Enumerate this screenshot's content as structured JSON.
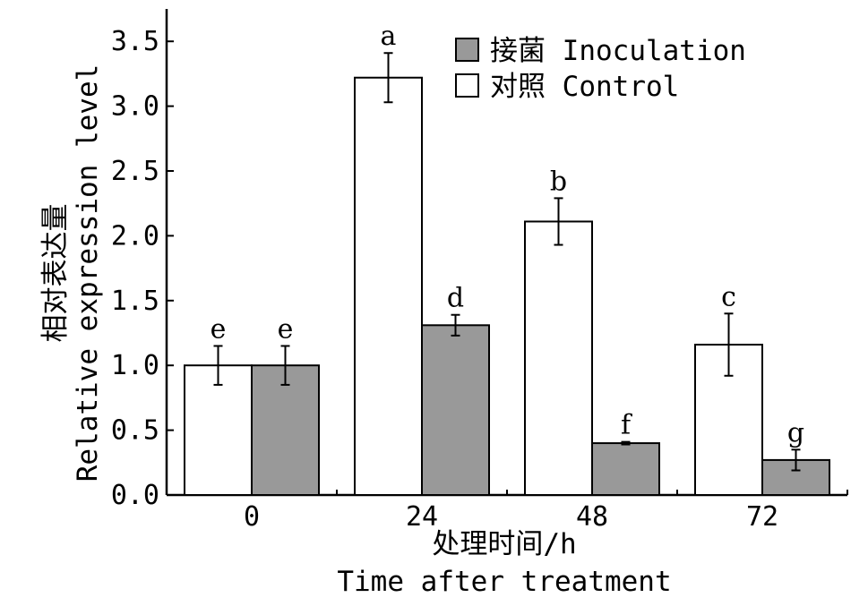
{
  "chart_data": {
    "type": "bar",
    "categories": [
      "0",
      "24",
      "48",
      "72"
    ],
    "series": [
      {
        "name": "对照 Control",
        "color": "#ffffff",
        "values": [
          1.0,
          3.22,
          2.11,
          1.16
        ],
        "errors": [
          0.15,
          0.19,
          0.18,
          0.24
        ],
        "labels": [
          "e",
          "a",
          "b",
          "c"
        ]
      },
      {
        "name": "接菌 Inoculation",
        "color": "#999999",
        "values": [
          1.0,
          1.31,
          0.4,
          0.27
        ],
        "errors": [
          0.15,
          0.08,
          0.01,
          0.08
        ],
        "labels": [
          "e",
          "d",
          "f",
          "g"
        ]
      }
    ],
    "legend_order": [
      1,
      0
    ],
    "xlabel": "处理时间/h",
    "xlabel_en": "Time after treatment",
    "ylabel": "相对表达量",
    "ylabel_en": "Relative expression level",
    "ylim": [
      0,
      3.75
    ],
    "yticks": [
      "0.0",
      "0.5",
      "1.0",
      "1.5",
      "2.0",
      "2.5",
      "3.0",
      "3.5"
    ],
    "legend_position": "top-right",
    "grid": false
  }
}
